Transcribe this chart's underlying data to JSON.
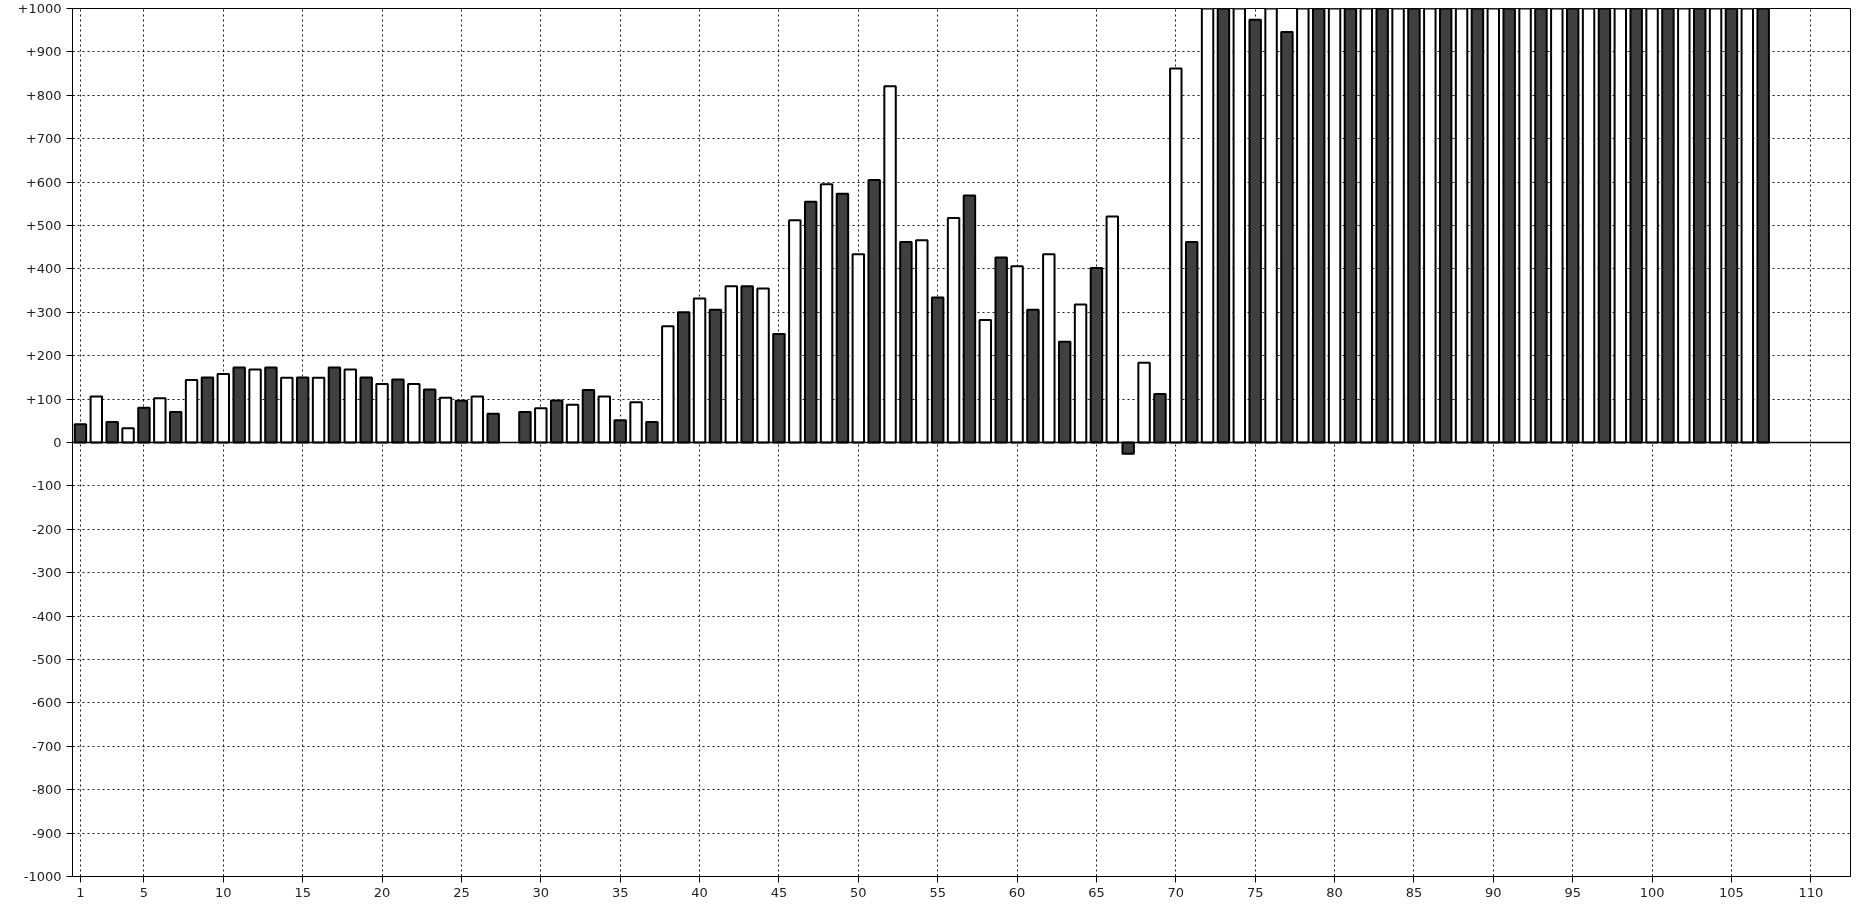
{
  "chart_data": {
    "type": "bar",
    "xlim": [
      0.5,
      112.5
    ],
    "xticks": [
      1,
      5,
      10,
      15,
      20,
      25,
      30,
      35,
      40,
      45,
      50,
      55,
      60,
      65,
      70,
      75,
      80,
      85,
      90,
      95,
      100,
      105,
      110
    ],
    "ylim": [
      -1000,
      1000
    ],
    "yticks": [
      {
        "value": -1000,
        "label": "-1000"
      },
      {
        "value": -900,
        "label": "-900"
      },
      {
        "value": -800,
        "label": "-800"
      },
      {
        "value": -700,
        "label": "-700"
      },
      {
        "value": -600,
        "label": "-600"
      },
      {
        "value": -500,
        "label": "-500"
      },
      {
        "value": -400,
        "label": "-400"
      },
      {
        "value": -300,
        "label": "-300"
      },
      {
        "value": -200,
        "label": "-200"
      },
      {
        "value": -100,
        "label": "-100"
      },
      0,
      {
        "value": 100,
        "label": "+100"
      },
      {
        "value": 200,
        "label": "+200"
      },
      {
        "value": 300,
        "label": "+300"
      },
      {
        "value": 400,
        "label": "+400"
      },
      {
        "value": 500,
        "label": "+500"
      },
      {
        "value": 600,
        "label": "+600"
      },
      {
        "value": 700,
        "label": "+700"
      },
      {
        "value": 800,
        "label": "+800"
      },
      {
        "value": 900,
        "label": "+900"
      },
      {
        "value": 1000,
        "label": "+1000"
      }
    ],
    "grid": true,
    "series": [
      {
        "color": "#404040",
        "x": [
          1,
          3,
          5,
          7,
          9,
          11,
          13,
          15,
          17,
          19,
          21,
          23,
          25,
          27,
          29,
          31,
          33,
          35,
          37,
          39,
          41,
          43,
          45,
          47,
          49,
          51,
          53,
          55,
          57,
          59,
          61,
          63,
          65,
          67,
          69,
          71,
          73,
          75,
          77,
          79,
          81,
          83,
          85,
          87,
          89,
          91,
          93,
          95,
          97,
          99,
          101,
          103,
          105,
          107
        ],
        "values": [
          42,
          47,
          80,
          70,
          150,
          173,
          173,
          150,
          173,
          150,
          145,
          122,
          96,
          66,
          70,
          97,
          121,
          51,
          47,
          300,
          306,
          360,
          250,
          555,
          573,
          605,
          462,
          334,
          569,
          426,
          306,
          232,
          402,
          -26,
          112,
          462,
          1000,
          974,
          946,
          1000,
          1000,
          1000,
          1000,
          1000,
          1000,
          1000,
          1000,
          1000,
          1000,
          1000,
          1000,
          1000,
          1000,
          1000
        ]
      },
      {
        "color": "#ffffff",
        "x": [
          2,
          4,
          6,
          8,
          10,
          12,
          14,
          16,
          18,
          20,
          22,
          24,
          26,
          28,
          30,
          32,
          34,
          36,
          38,
          40,
          42,
          44,
          46,
          48,
          50,
          52,
          54,
          56,
          58,
          60,
          62,
          64,
          66,
          68,
          70,
          72,
          74,
          76,
          78,
          80,
          82,
          84,
          86,
          88,
          90,
          92,
          94,
          96,
          98,
          100,
          102,
          104,
          106
        ],
        "values": [
          106,
          33,
          102,
          144,
          158,
          168,
          149,
          149,
          168,
          135,
          135,
          103,
          106,
          null,
          79,
          87,
          106,
          93,
          268,
          332,
          360,
          355,
          512,
          595,
          434,
          821,
          466,
          517,
          282,
          406,
          434,
          318,
          521,
          184,
          862,
          1000,
          1000,
          1000,
          1000,
          1000,
          1000,
          1000,
          1000,
          1000,
          1000,
          1000,
          1000,
          1000,
          1000,
          1000,
          1000,
          1000,
          1000
        ]
      }
    ]
  }
}
